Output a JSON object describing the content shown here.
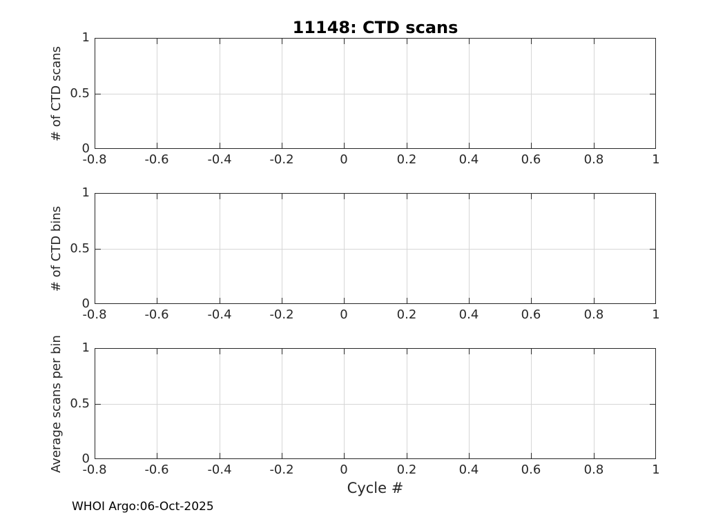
{
  "figure": {
    "footer": "WHOI Argo:06-Oct-2025"
  },
  "colors": {
    "background": "#ffffff",
    "axis": "#262626",
    "grid": "#d6d6d6",
    "text": "#262626",
    "title": "#000000",
    "footer": "#000000",
    "line": "#0072bd"
  },
  "chart_data": [
    {
      "type": "line",
      "title": "11148: CTD scans",
      "ylabel": "# of CTD scans",
      "xlabel": "",
      "x": [],
      "values": [],
      "xlim": [
        -0.8,
        1
      ],
      "ylim": [
        0,
        1
      ],
      "xticks": [
        -0.8,
        -0.6,
        -0.4,
        -0.2,
        0,
        0.2,
        0.4,
        0.6,
        0.8,
        1
      ],
      "yticks": [
        0,
        0.5,
        1
      ],
      "grid": true,
      "legend_position": "none"
    },
    {
      "type": "line",
      "title": "",
      "ylabel": "# of CTD bins",
      "xlabel": "",
      "x": [],
      "values": [],
      "xlim": [
        -0.8,
        1
      ],
      "ylim": [
        0,
        1
      ],
      "xticks": [
        -0.8,
        -0.6,
        -0.4,
        -0.2,
        0,
        0.2,
        0.4,
        0.6,
        0.8,
        1
      ],
      "yticks": [
        0,
        0.5,
        1
      ],
      "grid": true,
      "legend_position": "none"
    },
    {
      "type": "line",
      "title": "",
      "ylabel": "Average scans per bin",
      "xlabel": "Cycle #",
      "x": [],
      "values": [],
      "xlim": [
        -0.8,
        1
      ],
      "ylim": [
        0,
        1
      ],
      "xticks": [
        -0.8,
        -0.6,
        -0.4,
        -0.2,
        0,
        0.2,
        0.4,
        0.6,
        0.8,
        1
      ],
      "yticks": [
        0,
        0.5,
        1
      ],
      "grid": true,
      "legend_position": "none"
    }
  ]
}
